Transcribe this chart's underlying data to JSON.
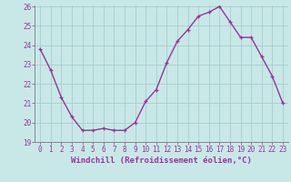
{
  "hours": [
    0,
    1,
    2,
    3,
    4,
    5,
    6,
    7,
    8,
    9,
    10,
    11,
    12,
    13,
    14,
    15,
    16,
    17,
    18,
    19,
    20,
    21,
    22,
    23
  ],
  "values": [
    23.8,
    22.7,
    21.3,
    20.3,
    19.6,
    19.6,
    19.7,
    19.6,
    19.6,
    20.0,
    21.1,
    21.7,
    23.1,
    24.2,
    24.8,
    25.5,
    25.7,
    26.0,
    25.2,
    24.4,
    24.4,
    23.4,
    22.4,
    21.0
  ],
  "line_color": "#993399",
  "marker": "+",
  "bg_color": "#c8e8e8",
  "grid_color": "#aacccc",
  "xlabel": "Windchill (Refroidissement éolien,°C)",
  "xlabel_color": "#993399",
  "ylim": [
    19,
    26
  ],
  "xlim": [
    -0.5,
    23.5
  ],
  "yticks": [
    19,
    20,
    21,
    22,
    23,
    24,
    25,
    26
  ],
  "xticks": [
    0,
    1,
    2,
    3,
    4,
    5,
    6,
    7,
    8,
    9,
    10,
    11,
    12,
    13,
    14,
    15,
    16,
    17,
    18,
    19,
    20,
    21,
    22,
    23
  ],
  "tick_color": "#993399",
  "tick_fontsize": 5.5,
  "xlabel_fontsize": 6.5,
  "line_width": 1.0,
  "marker_size": 3.5
}
